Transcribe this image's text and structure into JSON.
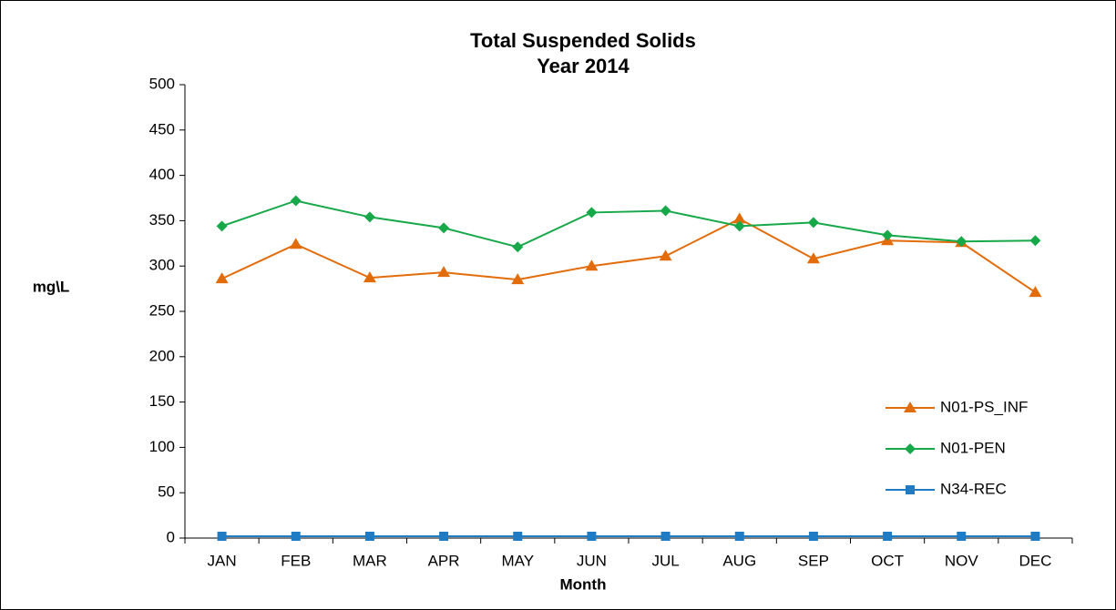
{
  "chart_data": {
    "type": "line",
    "title": "Total Suspended Solids",
    "subtitle": "Year 2014",
    "x_label": "Month",
    "y_label": "mg\\L",
    "categories": [
      "JAN",
      "FEB",
      "MAR",
      "APR",
      "MAY",
      "JUN",
      "JUL",
      "AUG",
      "SEP",
      "OCT",
      "NOV",
      "DEC"
    ],
    "series": [
      {
        "name": "N01-PS_INF",
        "color": "#e36c0a",
        "marker": "triangle",
        "values": [
          286,
          324,
          287,
          293,
          285,
          300,
          311,
          352,
          308,
          328,
          326,
          271
        ]
      },
      {
        "name": "N01-PEN",
        "color": "#17a84a",
        "marker": "diamond",
        "values": [
          344,
          372,
          354,
          342,
          321,
          359,
          361,
          344,
          348,
          334,
          327,
          328
        ]
      },
      {
        "name": "N34-REC",
        "color": "#1f7bc4",
        "marker": "square",
        "values": [
          2,
          2,
          2,
          2,
          2,
          2,
          2,
          2,
          2,
          2,
          2,
          2
        ]
      }
    ],
    "ylim": [
      0,
      500
    ],
    "yticks": [
      0,
      50,
      100,
      150,
      200,
      250,
      300,
      350,
      400,
      450,
      500
    ],
    "grid": false,
    "legend": "right"
  }
}
